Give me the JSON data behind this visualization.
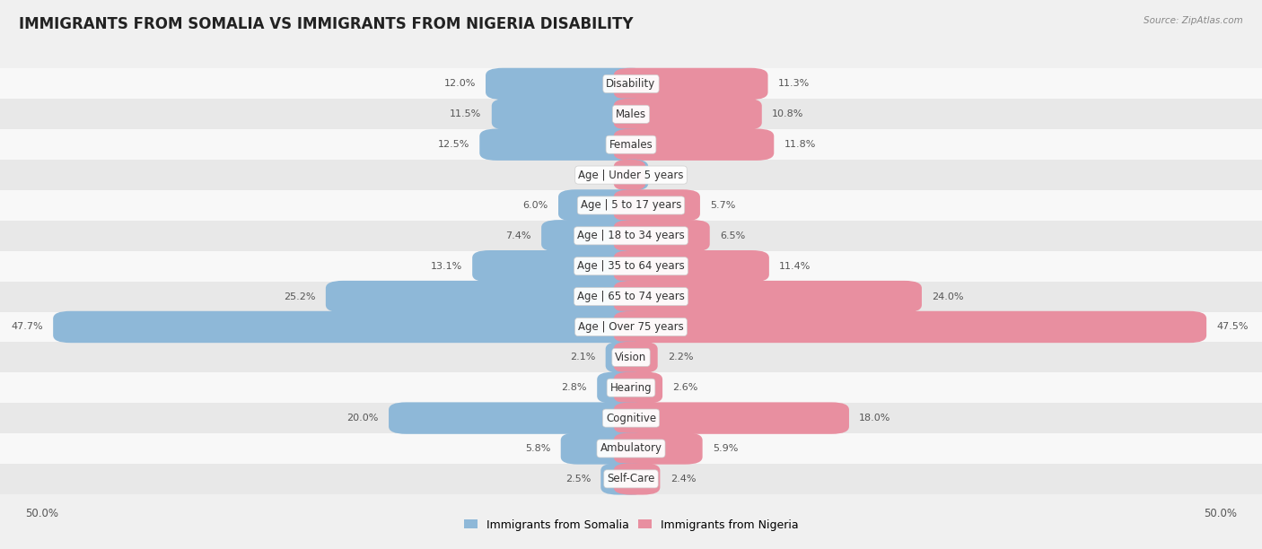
{
  "title": "IMMIGRANTS FROM SOMALIA VS IMMIGRANTS FROM NIGERIA DISABILITY",
  "source": "Source: ZipAtlas.com",
  "categories": [
    "Disability",
    "Males",
    "Females",
    "Age | Under 5 years",
    "Age | 5 to 17 years",
    "Age | 18 to 34 years",
    "Age | 35 to 64 years",
    "Age | 65 to 74 years",
    "Age | Over 75 years",
    "Vision",
    "Hearing",
    "Cognitive",
    "Ambulatory",
    "Self-Care"
  ],
  "somalia_values": [
    12.0,
    11.5,
    12.5,
    1.3,
    6.0,
    7.4,
    13.1,
    25.2,
    47.7,
    2.1,
    2.8,
    20.0,
    5.8,
    2.5
  ],
  "nigeria_values": [
    11.3,
    10.8,
    11.8,
    1.2,
    5.7,
    6.5,
    11.4,
    24.0,
    47.5,
    2.2,
    2.6,
    18.0,
    5.9,
    2.4
  ],
  "somalia_color": "#8eb8d8",
  "nigeria_color": "#e88fa0",
  "max_value": 50.0,
  "background_color": "#f0f0f0",
  "row_bg_even": "#f8f8f8",
  "row_bg_odd": "#e8e8e8",
  "legend_somalia": "Immigrants from Somalia",
  "legend_nigeria": "Immigrants from Nigeria",
  "title_fontsize": 12,
  "label_fontsize": 8.5,
  "value_fontsize": 8,
  "axis_label_fontsize": 8.5
}
